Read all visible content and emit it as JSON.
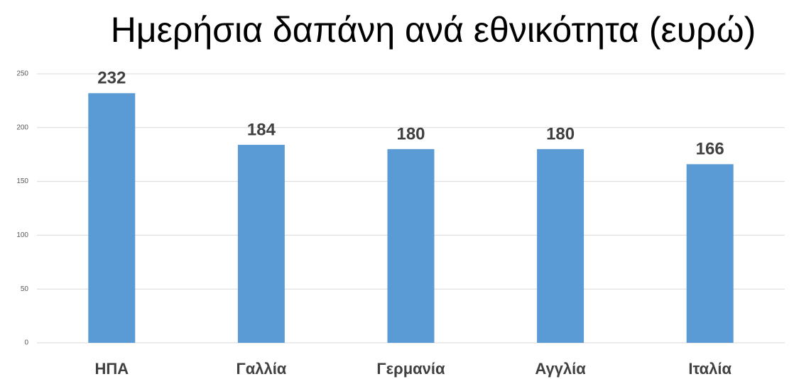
{
  "chart_data": {
    "type": "bar",
    "title": "Ημερήσια δαπάνη ανά εθνικότητα (ευρώ)",
    "categories": [
      "ΗΠΑ",
      "Γαλλία",
      "Γερμανία",
      "Αγγλία",
      "Ιταλία"
    ],
    "values": [
      232,
      184,
      180,
      180,
      166
    ],
    "color": "#5b9bd5",
    "ylim": [
      0,
      250
    ],
    "yticks": [
      0,
      50,
      100,
      150,
      200,
      250
    ],
    "grid": true
  }
}
